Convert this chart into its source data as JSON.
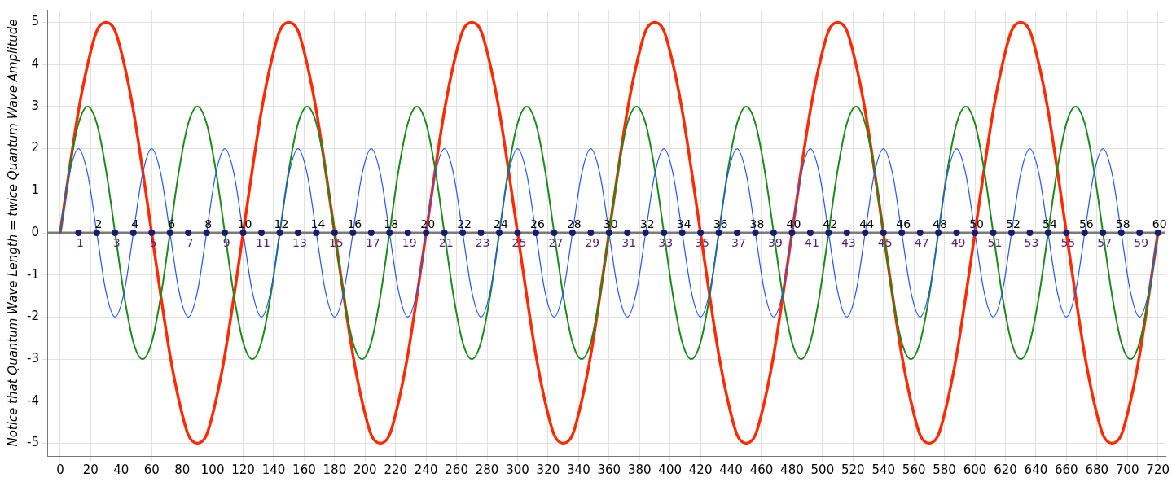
{
  "chart_data": {
    "type": "line",
    "ylabel": "Notice that Quantum Wave Length = twice Quantum Wave Amplitude",
    "x": [
      0,
      6,
      12,
      18,
      24,
      30,
      36,
      42,
      48,
      54,
      60,
      66,
      72,
      78,
      84,
      90,
      96,
      102,
      108,
      114,
      120,
      126,
      132,
      138,
      144,
      150,
      156,
      162,
      168,
      174,
      180,
      186,
      192,
      198,
      204,
      210,
      216,
      222,
      228,
      234,
      240,
      246,
      252,
      258,
      264,
      270,
      276,
      282,
      288,
      294,
      300,
      306,
      312,
      318,
      324,
      330,
      336,
      342,
      348,
      354,
      360,
      366,
      372,
      378,
      384,
      390,
      396,
      402,
      408,
      414,
      420,
      426,
      432,
      438,
      444,
      450,
      456,
      462,
      468,
      474,
      480,
      486,
      492,
      498,
      504,
      510,
      516,
      522,
      528,
      534,
      540,
      546,
      552,
      558,
      564,
      570,
      576,
      582,
      588,
      594,
      600,
      606,
      612,
      618,
      624,
      630,
      636,
      642,
      648,
      654,
      660,
      666,
      672,
      678,
      684,
      690,
      696,
      702,
      708,
      714,
      720
    ],
    "series": [
      {
        "color": "#ff2a00",
        "values": [
          0,
          1.5,
          2.9,
          4,
          4.8,
          5,
          4.8,
          4,
          2.9,
          1.5,
          0,
          -1.5,
          -2.9,
          -4,
          -4.8,
          -5,
          -4.8,
          -4,
          -2.9,
          -1.5,
          0,
          1.5,
          2.9,
          4,
          4.8,
          5,
          4.8,
          4,
          2.9,
          1.5,
          0,
          -1.5,
          -2.9,
          -4,
          -4.8,
          -5,
          -4.8,
          -4,
          -2.9,
          -1.5,
          0,
          1.5,
          2.9,
          4,
          4.8,
          5,
          4.8,
          4,
          2.9,
          1.5,
          0,
          -1.5,
          -2.9,
          -4,
          -4.8,
          -5,
          -4.8,
          -4,
          -2.9,
          -1.5,
          0,
          1.5,
          2.9,
          4,
          4.8,
          5,
          4.8,
          4,
          2.9,
          1.5,
          0,
          -1.5,
          -2.9,
          -4,
          -4.8,
          -5,
          -4.8,
          -4,
          -2.9,
          -1.5,
          0,
          1.5,
          2.9,
          4,
          4.8,
          5,
          4.8,
          4,
          2.9,
          1.5,
          0,
          -1.5,
          -2.9,
          -4,
          -4.8,
          -5,
          -4.8,
          -4,
          -2.9,
          -1.5,
          0,
          1.5,
          2.9,
          4,
          4.8,
          5,
          4.8,
          4,
          2.9,
          1.5,
          0,
          -1.5,
          -2.9,
          -4,
          -4.8,
          -5,
          -4.8,
          -4,
          -2.9,
          -1.5,
          0
        ]
      },
      {
        "color": "#1a8a1a",
        "values": [
          0,
          1.5,
          2.6,
          3,
          2.6,
          1.5,
          0,
          -1.5,
          -2.6,
          -3,
          -2.6,
          -1.5,
          0,
          1.5,
          2.6,
          3,
          2.6,
          1.5,
          0,
          -1.5,
          -2.6,
          -3,
          -2.6,
          -1.5,
          0,
          1.5,
          2.6,
          3,
          2.6,
          1.5,
          0,
          -1.5,
          -2.6,
          -3,
          -2.6,
          -1.5,
          0,
          1.5,
          2.6,
          3,
          2.6,
          1.5,
          0,
          -1.5,
          -2.6,
          -3,
          -2.6,
          -1.5,
          0,
          1.5,
          2.6,
          3,
          2.6,
          1.5,
          0,
          -1.5,
          -2.6,
          -3,
          -2.6,
          -1.5,
          0,
          1.5,
          2.6,
          3,
          2.6,
          1.5,
          0,
          -1.5,
          -2.6,
          -3,
          -2.6,
          -1.5,
          0,
          1.5,
          2.6,
          3,
          2.6,
          1.5,
          0,
          -1.5,
          -2.6,
          -3,
          -2.6,
          -1.5,
          0,
          1.5,
          2.6,
          3,
          2.6,
          1.5,
          0,
          -1.5,
          -2.6,
          -3,
          -2.6,
          -1.5,
          0,
          1.5,
          2.6,
          3,
          2.6,
          1.5,
          0,
          -1.5,
          -2.6,
          -3,
          -2.6,
          -1.5,
          0,
          1.5,
          2.6,
          3,
          2.6,
          1.5,
          0,
          -1.5,
          -2.6,
          -3,
          -2.6,
          -1.5,
          0
        ]
      },
      {
        "color": "#2255ff",
        "values": [
          0,
          1.4,
          2,
          1.4,
          0,
          -1.4,
          -2,
          -1.4,
          0,
          1.4,
          2,
          1.4,
          0,
          -1.4,
          -2,
          -1.4,
          0,
          1.4,
          2,
          1.4,
          0,
          -1.4,
          -2,
          -1.4,
          0,
          1.4,
          2,
          1.4,
          0,
          -1.4,
          -2,
          -1.4,
          0,
          1.4,
          2,
          1.4,
          0,
          -1.4,
          -2,
          -1.4,
          0,
          1.4,
          2,
          1.4,
          0,
          -1.4,
          -2,
          -1.4,
          0,
          1.4,
          2,
          1.4,
          0,
          -1.4,
          -2,
          -1.4,
          0,
          1.4,
          2,
          1.4,
          0,
          -1.4,
          -2,
          -1.4,
          0,
          1.4,
          2,
          1.4,
          0,
          -1.4,
          -2,
          -1.4,
          0,
          1.4,
          2,
          1.4,
          0,
          -1.4,
          -2,
          -1.4,
          0,
          1.4,
          2,
          1.4,
          0,
          -1.4,
          -2,
          -1.4,
          0,
          1.4,
          2,
          1.4,
          0,
          -1.4,
          -2,
          -1.4,
          0,
          1.4,
          2,
          1.4,
          0,
          -1.4,
          -2,
          -1.4,
          0,
          1.4,
          2,
          1.4,
          0,
          -1.4,
          -2,
          -1.4,
          0,
          1.4,
          2,
          1.4,
          0,
          -1.4,
          -2,
          -1.4,
          0
        ]
      },
      {
        "type": "scatter",
        "color": "#1a1a6e",
        "marker": "circle",
        "x": [
          12,
          24,
          36,
          48,
          60,
          72,
          84,
          96,
          108,
          120,
          132,
          144,
          156,
          168,
          180,
          192,
          204,
          216,
          228,
          240,
          252,
          264,
          276,
          288,
          300,
          312,
          324,
          336,
          348,
          360,
          372,
          384,
          396,
          408,
          420,
          432,
          444,
          456,
          468,
          480,
          492,
          504,
          516,
          528,
          540,
          552,
          564,
          576,
          588,
          600,
          612,
          624,
          636,
          648,
          660,
          672,
          684,
          696,
          708,
          720
        ],
        "values": [
          0,
          0,
          0,
          0,
          0,
          0,
          0,
          0,
          0,
          0,
          0,
          0,
          0,
          0,
          0,
          0,
          0,
          0,
          0,
          0,
          0,
          0,
          0,
          0,
          0,
          0,
          0,
          0,
          0,
          0,
          0,
          0,
          0,
          0,
          0,
          0,
          0,
          0,
          0,
          0,
          0,
          0,
          0,
          0,
          0,
          0,
          0,
          0,
          0,
          0,
          0,
          0,
          0,
          0,
          0,
          0,
          0,
          0,
          0,
          0
        ]
      }
    ],
    "annotations": [
      {
        "text": "1",
        "x": 12,
        "y": 0
      },
      {
        "text": "2",
        "x": 24,
        "y": 0
      },
      {
        "text": "3",
        "x": 36,
        "y": 0
      },
      {
        "text": "4",
        "x": 48,
        "y": 0
      },
      {
        "text": "5",
        "x": 60,
        "y": 0
      },
      {
        "text": "6",
        "x": 72,
        "y": 0
      },
      {
        "text": "7",
        "x": 84,
        "y": 0
      },
      {
        "text": "8",
        "x": 96,
        "y": 0
      },
      {
        "text": "9",
        "x": 108,
        "y": 0
      },
      {
        "text": "10",
        "x": 120,
        "y": 0
      },
      {
        "text": "11",
        "x": 132,
        "y": 0
      },
      {
        "text": "12",
        "x": 144,
        "y": 0
      },
      {
        "text": "13",
        "x": 156,
        "y": 0
      },
      {
        "text": "14",
        "x": 168,
        "y": 0
      },
      {
        "text": "15",
        "x": 180,
        "y": 0
      },
      {
        "text": "16",
        "x": 192,
        "y": 0
      },
      {
        "text": "17",
        "x": 204,
        "y": 0
      },
      {
        "text": "18",
        "x": 216,
        "y": 0
      },
      {
        "text": "19",
        "x": 228,
        "y": 0
      },
      {
        "text": "20",
        "x": 240,
        "y": 0
      },
      {
        "text": "21",
        "x": 252,
        "y": 0
      },
      {
        "text": "22",
        "x": 264,
        "y": 0
      },
      {
        "text": "23",
        "x": 276,
        "y": 0
      },
      {
        "text": "24",
        "x": 288,
        "y": 0
      },
      {
        "text": "25",
        "x": 300,
        "y": 0
      },
      {
        "text": "26",
        "x": 312,
        "y": 0
      },
      {
        "text": "27",
        "x": 324,
        "y": 0
      },
      {
        "text": "28",
        "x": 336,
        "y": 0
      },
      {
        "text": "29",
        "x": 348,
        "y": 0
      },
      {
        "text": "30",
        "x": 360,
        "y": 0
      },
      {
        "text": "31",
        "x": 372,
        "y": 0
      },
      {
        "text": "32",
        "x": 384,
        "y": 0
      },
      {
        "text": "33",
        "x": 396,
        "y": 0
      },
      {
        "text": "34",
        "x": 408,
        "y": 0
      },
      {
        "text": "35",
        "x": 420,
        "y": 0
      },
      {
        "text": "36",
        "x": 432,
        "y": 0
      },
      {
        "text": "37",
        "x": 444,
        "y": 0
      },
      {
        "text": "38",
        "x": 456,
        "y": 0
      },
      {
        "text": "39",
        "x": 468,
        "y": 0
      },
      {
        "text": "40",
        "x": 480,
        "y": 0
      },
      {
        "text": "41",
        "x": 492,
        "y": 0
      },
      {
        "text": "42",
        "x": 504,
        "y": 0
      },
      {
        "text": "43",
        "x": 516,
        "y": 0
      },
      {
        "text": "44",
        "x": 528,
        "y": 0
      },
      {
        "text": "45",
        "x": 540,
        "y": 0
      },
      {
        "text": "46",
        "x": 552,
        "y": 0
      },
      {
        "text": "47",
        "x": 564,
        "y": 0
      },
      {
        "text": "48",
        "x": 576,
        "y": 0
      },
      {
        "text": "49",
        "x": 588,
        "y": 0
      },
      {
        "text": "50",
        "x": 600,
        "y": 0
      },
      {
        "text": "51",
        "x": 612,
        "y": 0
      },
      {
        "text": "52",
        "x": 624,
        "y": 0
      },
      {
        "text": "53",
        "x": 636,
        "y": 0
      },
      {
        "text": "54",
        "x": 648,
        "y": 0
      },
      {
        "text": "55",
        "x": 660,
        "y": 0
      },
      {
        "text": "56",
        "x": 672,
        "y": 0
      },
      {
        "text": "57",
        "x": 684,
        "y": 0
      },
      {
        "text": "58",
        "x": 696,
        "y": 0
      },
      {
        "text": "59",
        "x": 708,
        "y": 0
      },
      {
        "text": "60",
        "x": 720,
        "y": 0
      }
    ],
    "ref_lines": [
      {
        "axis": "y",
        "value": 0,
        "color": "#7a7a7a"
      }
    ],
    "xlim": [
      -8,
      725
    ],
    "xticks": [
      0,
      20,
      40,
      60,
      80,
      100,
      120,
      140,
      160,
      180,
      200,
      220,
      240,
      260,
      280,
      300,
      320,
      340,
      360,
      380,
      400,
      420,
      440,
      460,
      480,
      500,
      520,
      540,
      560,
      580,
      600,
      620,
      640,
      660,
      680,
      700,
      720
    ],
    "ylim": [
      -5.3,
      5.3
    ],
    "yticks": [
      -5,
      -4,
      -3,
      -2,
      -1,
      0,
      1,
      2,
      3,
      4,
      5
    ],
    "grid": true,
    "legend": false
  }
}
